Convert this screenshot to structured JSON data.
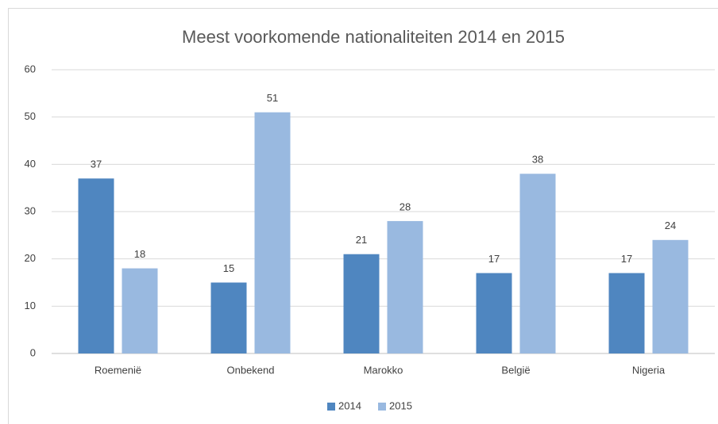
{
  "chart_data": {
    "type": "bar",
    "title": "Meest voorkomende nationaliteiten 2014 en 2015",
    "categories": [
      "Roemenië",
      "Onbekend",
      "Marokko",
      "België",
      "Nigeria"
    ],
    "series": [
      {
        "name": "2014",
        "color": "#4f86c0",
        "values": [
          37,
          15,
          21,
          17,
          17
        ]
      },
      {
        "name": "2015",
        "color": "#99b9e0",
        "values": [
          18,
          51,
          28,
          38,
          24
        ]
      }
    ],
    "ylim": [
      0,
      60
    ],
    "yticks": [
      0,
      10,
      20,
      30,
      40,
      50,
      60
    ],
    "grid": true,
    "legend": "bottom"
  }
}
